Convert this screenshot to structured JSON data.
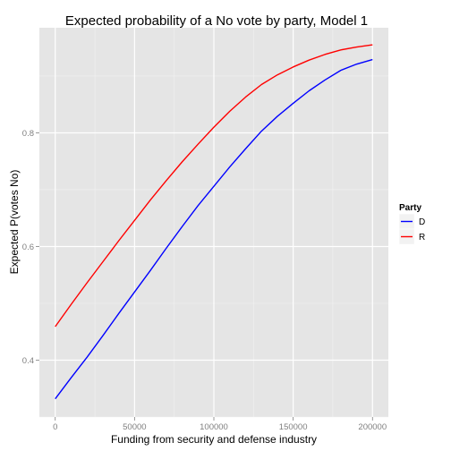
{
  "chart_data": {
    "type": "line",
    "title": "Expected probability of a No vote by party, Model 1",
    "xlabel": "Funding from security and defense industry",
    "ylabel": "Expected P(votes No)",
    "xlim": [
      -10000,
      210000
    ],
    "ylim": [
      0.3,
      0.985
    ],
    "x_ticks": [
      0,
      50000,
      100000,
      150000,
      200000
    ],
    "x_tick_labels": [
      "0",
      "50000",
      "100000",
      "150000",
      "200000"
    ],
    "y_ticks": [
      0.4,
      0.6,
      0.8
    ],
    "y_tick_labels": [
      "0.4",
      "0.6",
      "0.8"
    ],
    "grid": true,
    "legend": {
      "title": "Party",
      "position": "right"
    },
    "x": [
      0,
      10000,
      20000,
      30000,
      40000,
      50000,
      60000,
      70000,
      80000,
      90000,
      100000,
      110000,
      120000,
      130000,
      140000,
      150000,
      160000,
      170000,
      180000,
      190000,
      200000
    ],
    "series": [
      {
        "name": "D",
        "color": "#0000ff",
        "values": [
          0.332,
          0.369,
          0.405,
          0.443,
          0.482,
          0.52,
          0.558,
          0.597,
          0.635,
          0.672,
          0.706,
          0.74,
          0.772,
          0.803,
          0.829,
          0.852,
          0.874,
          0.893,
          0.91,
          0.921,
          0.929
        ]
      },
      {
        "name": "R",
        "color": "#ff0000",
        "values": [
          0.459,
          0.498,
          0.536,
          0.573,
          0.61,
          0.646,
          0.682,
          0.716,
          0.749,
          0.78,
          0.81,
          0.838,
          0.863,
          0.885,
          0.902,
          0.916,
          0.928,
          0.938,
          0.946,
          0.951,
          0.955
        ]
      }
    ]
  }
}
